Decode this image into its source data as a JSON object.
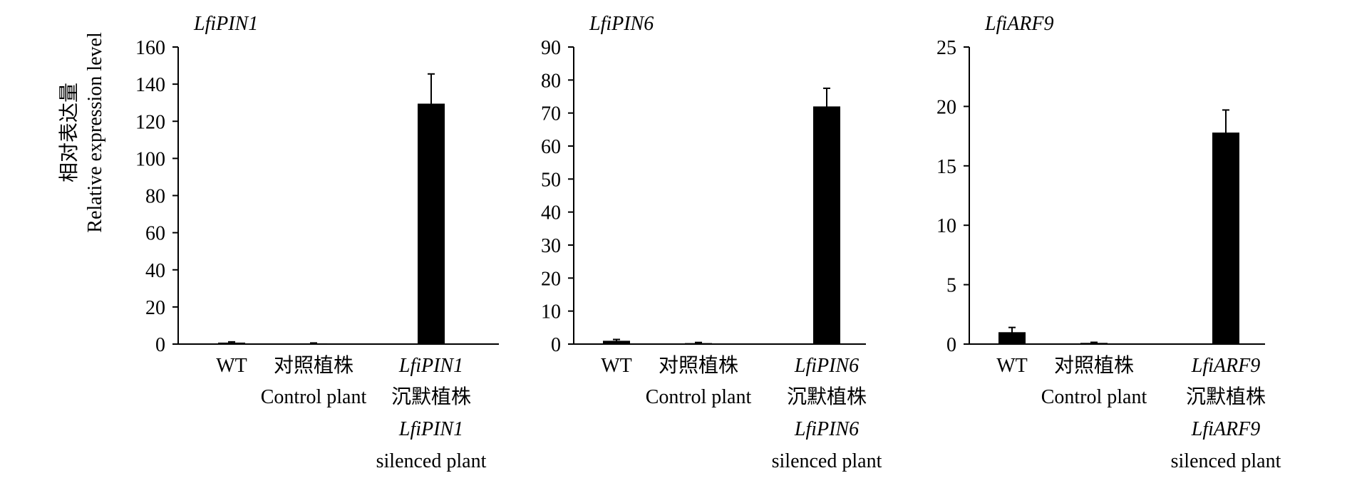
{
  "y_axis_label": {
    "zh": "相对表达量",
    "en": "Relative expression level"
  },
  "chart_data": [
    {
      "type": "bar",
      "title": "LfiPIN1",
      "ylim": [
        0,
        160
      ],
      "yticks": [
        0,
        20,
        40,
        60,
        80,
        100,
        120,
        140,
        160
      ],
      "categories": [
        {
          "lines": [
            "WT"
          ],
          "italic": [
            false
          ]
        },
        {
          "lines": [
            "对照植株",
            "Control plant"
          ],
          "italic": [
            false,
            false
          ]
        },
        {
          "lines": [
            "LfiPIN1",
            "沉默植株",
            "LfiPIN1",
            "silenced plant"
          ],
          "italic": [
            true,
            false,
            true,
            false
          ]
        }
      ],
      "values": [
        0.8,
        0.4,
        129.5
      ],
      "errors": [
        0.4,
        0.2,
        16
      ]
    },
    {
      "type": "bar",
      "title": "LfiPIN6",
      "ylim": [
        0,
        90
      ],
      "yticks": [
        0,
        10,
        20,
        30,
        40,
        50,
        60,
        70,
        80,
        90
      ],
      "categories": [
        {
          "lines": [
            "WT"
          ],
          "italic": [
            false
          ]
        },
        {
          "lines": [
            "对照植株",
            "Control plant"
          ],
          "italic": [
            false,
            false
          ]
        },
        {
          "lines": [
            "LfiPIN6",
            "沉默植株",
            "LfiPIN6",
            "silenced plant"
          ],
          "italic": [
            true,
            false,
            true,
            false
          ]
        }
      ],
      "values": [
        1.0,
        0.3,
        72
      ],
      "errors": [
        0.4,
        0.2,
        5.5
      ]
    },
    {
      "type": "bar",
      "title": "LfiARF9",
      "ylim": [
        0,
        25
      ],
      "yticks": [
        0,
        5,
        10,
        15,
        20,
        25
      ],
      "categories": [
        {
          "lines": [
            "WT"
          ],
          "italic": [
            false
          ]
        },
        {
          "lines": [
            "对照植株",
            "Control plant"
          ],
          "italic": [
            false,
            false
          ]
        },
        {
          "lines": [
            "LfiARF9",
            "沉默植株",
            "LfiARF9",
            "silenced plant"
          ],
          "italic": [
            true,
            false,
            true,
            false
          ]
        }
      ],
      "values": [
        1.0,
        0.1,
        17.8
      ],
      "errors": [
        0.4,
        0.05,
        1.9
      ]
    }
  ]
}
